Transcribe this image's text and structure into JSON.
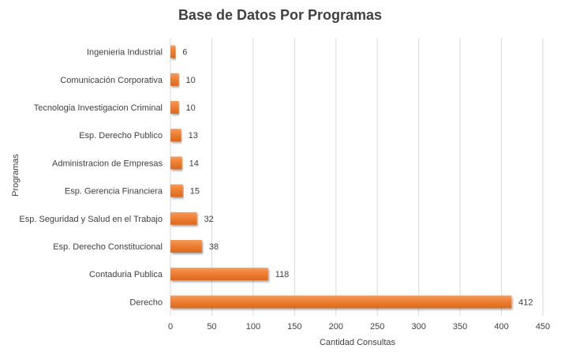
{
  "chart_data": {
    "type": "bar",
    "orientation": "horizontal",
    "title": "Base de Datos Por Programas",
    "xlabel": "Cantidad Consultas",
    "ylabel": "Programas",
    "xlim": [
      0,
      450
    ],
    "xticks": [
      0,
      50,
      100,
      150,
      200,
      250,
      300,
      350,
      400,
      450
    ],
    "grid": true,
    "legend": "none",
    "bar_color": "#ED7D31",
    "categories": [
      "Ingenieria Industrial",
      "Comunicación Corporativa",
      "Tecnologia Investigacion Criminal",
      "Esp. Derecho Publico",
      "Administracion de Empresas",
      "Esp. Gerencia Financiera",
      "Esp. Seguridad y Salud en el Trabajo",
      "Esp. Derecho Constitucional",
      "Contaduria Publica",
      "Derecho"
    ],
    "values": [
      6,
      10,
      10,
      13,
      14,
      15,
      32,
      38,
      118,
      412
    ]
  }
}
